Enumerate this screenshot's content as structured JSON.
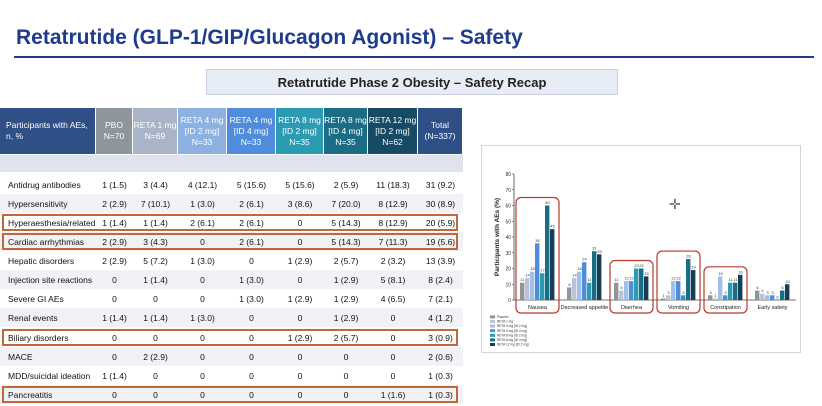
{
  "title": "Retatrutide (GLP-1/GIP/Glucagon Agonist) – Safety",
  "subtitle": "Retatrutide Phase 2 Obesity – Safety Recap",
  "table": {
    "corner": [
      "Participants with AEs,",
      "n, %"
    ],
    "columns": [
      {
        "lines": [
          "PBO",
          "N=70"
        ],
        "color": "#8f959c"
      },
      {
        "lines": [
          "RETA 1 mg",
          "N=69"
        ],
        "color": "#a9b4c8"
      },
      {
        "lines": [
          "RETA 4 mg",
          "[ID 2 mg]",
          "N=33"
        ],
        "color": "#8db1e0"
      },
      {
        "lines": [
          "RETA 4 mg",
          "[ID 4 mg]",
          "N=33"
        ],
        "color": "#4f8cdb"
      },
      {
        "lines": [
          "RETA 8 mg",
          "[ID 2 mg]",
          "N=35"
        ],
        "color": "#2a9bb1"
      },
      {
        "lines": [
          "RETA 8 mg",
          "[ID 4 mg]",
          "N=35"
        ],
        "color": "#1b6d86"
      },
      {
        "lines": [
          "RETA 12 mg",
          "[ID 2 mg]",
          "N=62"
        ],
        "color": "#174a63"
      },
      {
        "lines": [
          "Total",
          "(N=337)"
        ],
        "color": "#2f4f87"
      }
    ],
    "rows": [
      {
        "label": "Antidrug antibodies",
        "values": [
          "1 (1.5)",
          "3 (4.4)",
          "4 (12.1)",
          "5 (15.6)",
          "5 (15.6)",
          "2 (5.9)",
          "11 (18.3)",
          "31 (9.2)"
        ],
        "highlight": false
      },
      {
        "label": "Hypersensitivity",
        "values": [
          "2 (2.9)",
          "7 (10.1)",
          "1 (3.0)",
          "2 (6.1)",
          "3 (8.6)",
          "7 (20.0)",
          "8 (12.9)",
          "30 (8.9)"
        ],
        "highlight": false
      },
      {
        "label": "Hyperaesthesia/related",
        "values": [
          "1 (1.4)",
          "1 (1.4)",
          "2 (6.1)",
          "2 (6.1)",
          "0",
          "5 (14.3)",
          "8 (12.9)",
          "20 (5.9)"
        ],
        "highlight": true
      },
      {
        "label": "Cardiac arrhythmias",
        "values": [
          "2 (2.9)",
          "3 (4.3)",
          "0",
          "2 (6.1)",
          "0",
          "5 (14.3)",
          "7 (11.3)",
          "19 (5.6)"
        ],
        "highlight": true
      },
      {
        "label": "Hepatic disorders",
        "values": [
          "2 (2.9)",
          "5 (7.2)",
          "1 (3.0)",
          "0",
          "1 (2.9)",
          "2 (5.7)",
          "2 (3.2)",
          "13 (3.9)"
        ],
        "highlight": false
      },
      {
        "label": "Injection site reactions",
        "values": [
          "0",
          "1 (1.4)",
          "0",
          "1 (3.0)",
          "0",
          "1 (2.9)",
          "5 (8.1)",
          "8 (2.4)"
        ],
        "highlight": false
      },
      {
        "label": "Severe GI AEs",
        "values": [
          "0",
          "0",
          "0",
          "1 (3.0)",
          "1 (2.9)",
          "1 (2.9)",
          "4 (6.5)",
          "7 (2.1)"
        ],
        "highlight": false
      },
      {
        "label": "Renal events",
        "values": [
          "1 (1.4)",
          "1 (1.4)",
          "1 (3.0)",
          "0",
          "0",
          "1 (2.9)",
          "0",
          "4 (1.2)"
        ],
        "highlight": false
      },
      {
        "label": "Biliary disorders",
        "values": [
          "0",
          "0",
          "0",
          "0",
          "1 (2.9)",
          "2 (5.7)",
          "0",
          "3 (0.9)"
        ],
        "highlight": true
      },
      {
        "label": "MACE",
        "values": [
          "0",
          "2 (2.9)",
          "0",
          "0",
          "0",
          "0",
          "0",
          "2 (0.6)"
        ],
        "highlight": false
      },
      {
        "label": "MDD/suicidal ideation",
        "values": [
          "1 (1.4)",
          "0",
          "0",
          "0",
          "0",
          "0",
          "0",
          "1 (0.3)"
        ],
        "highlight": false
      },
      {
        "label": "Pancreatitis",
        "values": [
          "0",
          "0",
          "0",
          "0",
          "0",
          "0",
          "1 (1.6)",
          "1 (0.3)"
        ],
        "highlight": true
      }
    ]
  },
  "chart_data": {
    "type": "bar",
    "ylabel": "Participants with AEs (%)",
    "ylim": [
      0,
      80
    ],
    "yticks": [
      0,
      10,
      20,
      30,
      40,
      50,
      60,
      70,
      80
    ],
    "categories": [
      "Nausea",
      "Decreased appetite",
      "Diarrhea",
      "Vomiting",
      "Constipation",
      "Early satiety"
    ],
    "highlighted_categories": [
      "Nausea",
      "Diarrhea",
      "Vomiting",
      "Constipation"
    ],
    "series": [
      {
        "name": "Placebo",
        "color": "#8f959c",
        "values": [
          11,
          8,
          11,
          1,
          3,
          6
        ]
      },
      {
        "name": "RETA 1 mg",
        "color": "#b8c3d6",
        "values": [
          14,
          14,
          6,
          3,
          1,
          4
        ]
      },
      {
        "name": "RETA 4 mg [ID 2 mg]",
        "color": "#9ec0ea",
        "values": [
          18,
          18,
          12,
          12,
          15,
          3
        ]
      },
      {
        "name": "RETA 4 mg [ID 4 mg]",
        "color": "#4f8cdb",
        "values": [
          36,
          24,
          12,
          12,
          3,
          3
        ]
      },
      {
        "name": "RETA 8 mg [ID 2 mg]",
        "color": "#2a9bb1",
        "values": [
          17,
          11,
          20,
          3,
          11,
          0
        ]
      },
      {
        "name": "RETA 8 mg [ID 4 mg]",
        "color": "#1b6d86",
        "values": [
          60,
          31,
          20,
          26,
          11,
          6
        ]
      },
      {
        "name": "RETA 12 mg [ID 2 mg]",
        "color": "#163e57",
        "values": [
          45,
          29,
          15,
          19,
          16,
          10
        ]
      }
    ]
  }
}
